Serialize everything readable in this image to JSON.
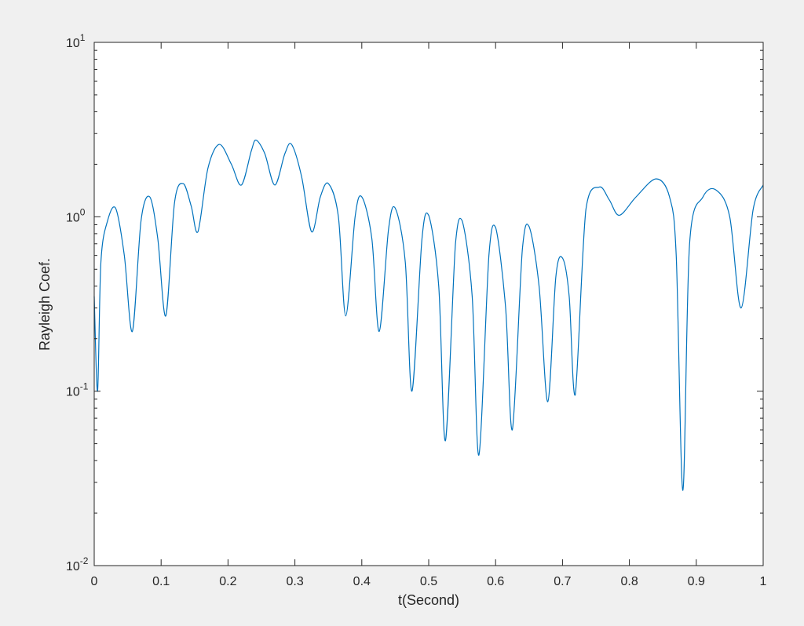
{
  "chart_data": {
    "type": "line",
    "title": "",
    "xlabel": "t(Second)",
    "ylabel": "Rayleigh Coef.",
    "xlim": [
      0,
      1
    ],
    "ylim": [
      0.01,
      10
    ],
    "yscale": "log",
    "grid": false,
    "legend": "none",
    "x_ticks": [
      0,
      0.1,
      0.2,
      0.3,
      0.4,
      0.5,
      0.6,
      0.7,
      0.8,
      0.9,
      1
    ],
    "x_tick_labels": [
      "0",
      "0.1",
      "0.2",
      "0.3",
      "0.4",
      "0.5",
      "0.6",
      "0.7",
      "0.8",
      "0.9",
      "1"
    ],
    "y_ticks": [
      {
        "value": 10,
        "base": "10",
        "exp": "1"
      },
      {
        "value": 1,
        "base": "10",
        "exp": "0"
      },
      {
        "value": 0.1,
        "base": "10",
        "exp": "-1"
      },
      {
        "value": 0.01,
        "base": "10",
        "exp": "-2"
      }
    ],
    "series": [
      {
        "color": "#0072bd",
        "x": [
          0,
          0.005,
          0.01,
          0.02,
          0.032,
          0.045,
          0.057,
          0.07,
          0.083,
          0.095,
          0.107,
          0.12,
          0.133,
          0.145,
          0.155,
          0.17,
          0.187,
          0.205,
          0.22,
          0.235,
          0.242,
          0.255,
          0.27,
          0.285,
          0.295,
          0.31,
          0.325,
          0.338,
          0.35,
          0.365,
          0.376,
          0.39,
          0.4,
          0.415,
          0.426,
          0.44,
          0.45,
          0.465,
          0.475,
          0.49,
          0.5,
          0.515,
          0.525,
          0.54,
          0.55,
          0.565,
          0.575,
          0.59,
          0.6,
          0.615,
          0.625,
          0.64,
          0.65,
          0.665,
          0.678,
          0.69,
          0.7,
          0.71,
          0.719,
          0.735,
          0.755,
          0.77,
          0.785,
          0.81,
          0.84,
          0.86,
          0.87,
          0.88,
          0.89,
          0.91,
          0.93,
          0.95,
          0.967,
          0.985,
          1.0
        ],
        "y": [
          0.35,
          0.1,
          0.55,
          0.95,
          1.12,
          0.6,
          0.22,
          0.95,
          1.3,
          0.75,
          0.27,
          1.2,
          1.55,
          1.15,
          0.82,
          1.9,
          2.6,
          2.0,
          1.52,
          2.4,
          2.75,
          2.3,
          1.52,
          2.3,
          2.6,
          1.7,
          0.82,
          1.3,
          1.55,
          1.0,
          0.27,
          1.0,
          1.3,
          0.75,
          0.22,
          0.85,
          1.12,
          0.55,
          0.1,
          0.75,
          1.02,
          0.4,
          0.052,
          0.7,
          0.95,
          0.35,
          0.043,
          0.6,
          0.87,
          0.3,
          0.06,
          0.65,
          0.88,
          0.4,
          0.087,
          0.45,
          0.58,
          0.35,
          0.095,
          1.1,
          1.48,
          1.25,
          1.02,
          1.3,
          1.65,
          1.3,
          0.6,
          0.027,
          0.7,
          1.3,
          1.42,
          1.0,
          0.3,
          1.1,
          1.52
        ]
      }
    ]
  }
}
